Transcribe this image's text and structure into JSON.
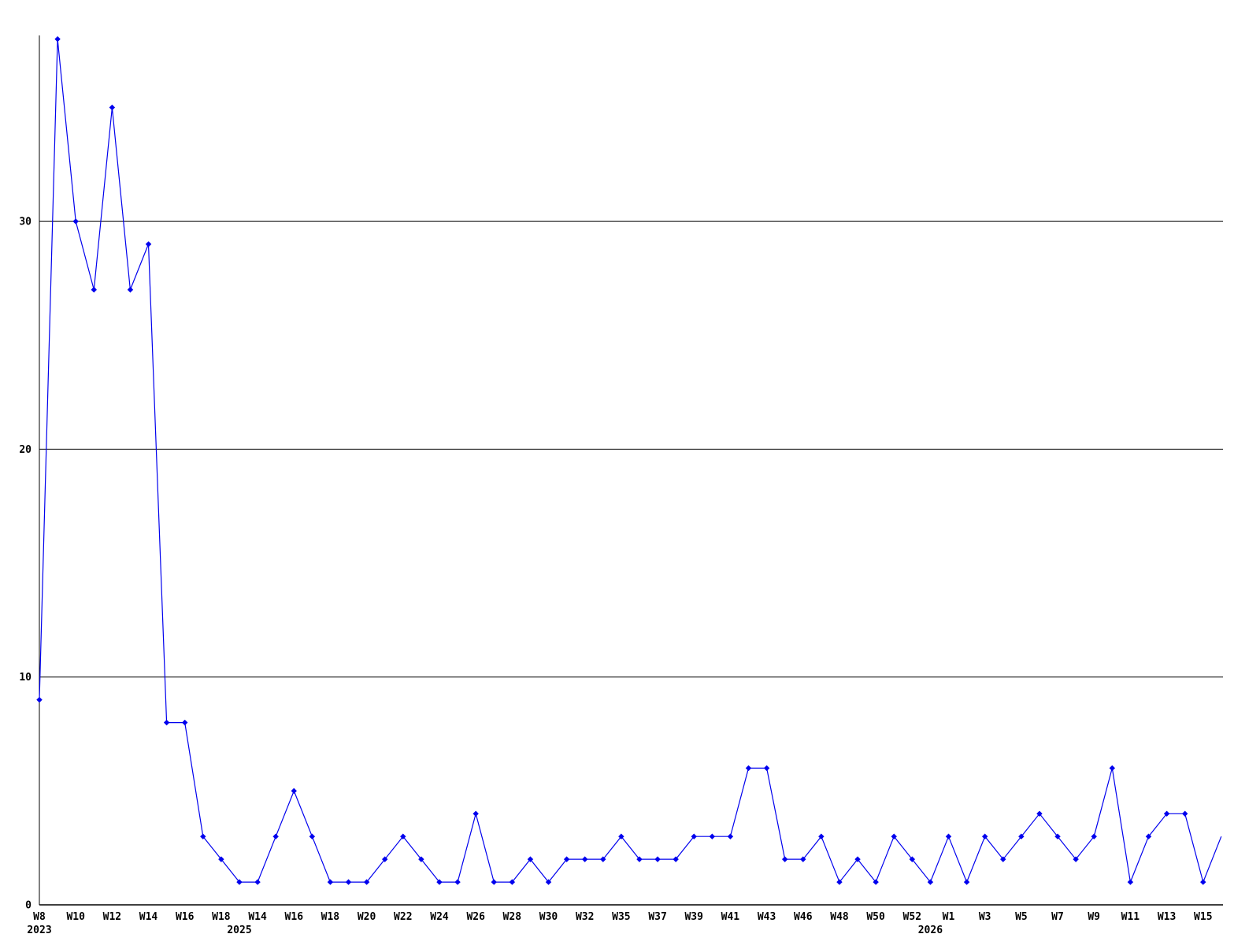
{
  "chart_data": {
    "type": "line",
    "title": "",
    "xlabel": "",
    "ylabel": "",
    "legend": "none",
    "grid": "horizontal-only",
    "marker": "diamond",
    "line_color": "#0000ee",
    "grid_color": "#000000",
    "axis_color": "#000000",
    "text_color": "#000000",
    "background_color": "#ffffff",
    "y_ticks": [
      0,
      10,
      20,
      30
    ],
    "ylim": [
      0,
      38.5
    ],
    "values": [
      9,
      38,
      30,
      27,
      35,
      27,
      29,
      8,
      8,
      3,
      2,
      1,
      1,
      3,
      5,
      3,
      1,
      1,
      1,
      2,
      3,
      2,
      1,
      1,
      4,
      1,
      1,
      2,
      1,
      2,
      2,
      2,
      3,
      2,
      2,
      2,
      3,
      3,
      3,
      6,
      6,
      2,
      2,
      3,
      1,
      2,
      1,
      3,
      2,
      1,
      3,
      1,
      3,
      2,
      3,
      4,
      3,
      2,
      3,
      6,
      1,
      3,
      4,
      4,
      1,
      3
    ],
    "x_tick_labels": [
      {
        "label": "W8"
      },
      {
        "label": "W10"
      },
      {
        "label": "W12"
      },
      {
        "label": "W14"
      },
      {
        "label": "W16"
      },
      {
        "label": "W18"
      },
      {
        "label": "W14"
      },
      {
        "label": "W16"
      },
      {
        "label": "W18"
      },
      {
        "label": "W20"
      },
      {
        "label": "W22"
      },
      {
        "label": "W24"
      },
      {
        "label": "W26"
      },
      {
        "label": "W28"
      },
      {
        "label": "W30"
      },
      {
        "label": "W32"
      },
      {
        "label": "W35"
      },
      {
        "label": "W37"
      },
      {
        "label": "W39"
      },
      {
        "label": "W41"
      },
      {
        "label": "W43"
      },
      {
        "label": "W46"
      },
      {
        "label": "W48"
      },
      {
        "label": "W50"
      },
      {
        "label": "W52"
      },
      {
        "label": "W1"
      },
      {
        "label": "W3"
      },
      {
        "label": "W5"
      },
      {
        "label": "W7"
      },
      {
        "label": "W9"
      },
      {
        "label": "W11"
      },
      {
        "label": "W13"
      },
      {
        "label": "W15"
      }
    ],
    "year_labels": [
      {
        "text": "2023",
        "point_index": 0
      },
      {
        "text": "2025",
        "point_index": 11
      },
      {
        "text": "2026",
        "point_index": 49
      }
    ]
  }
}
